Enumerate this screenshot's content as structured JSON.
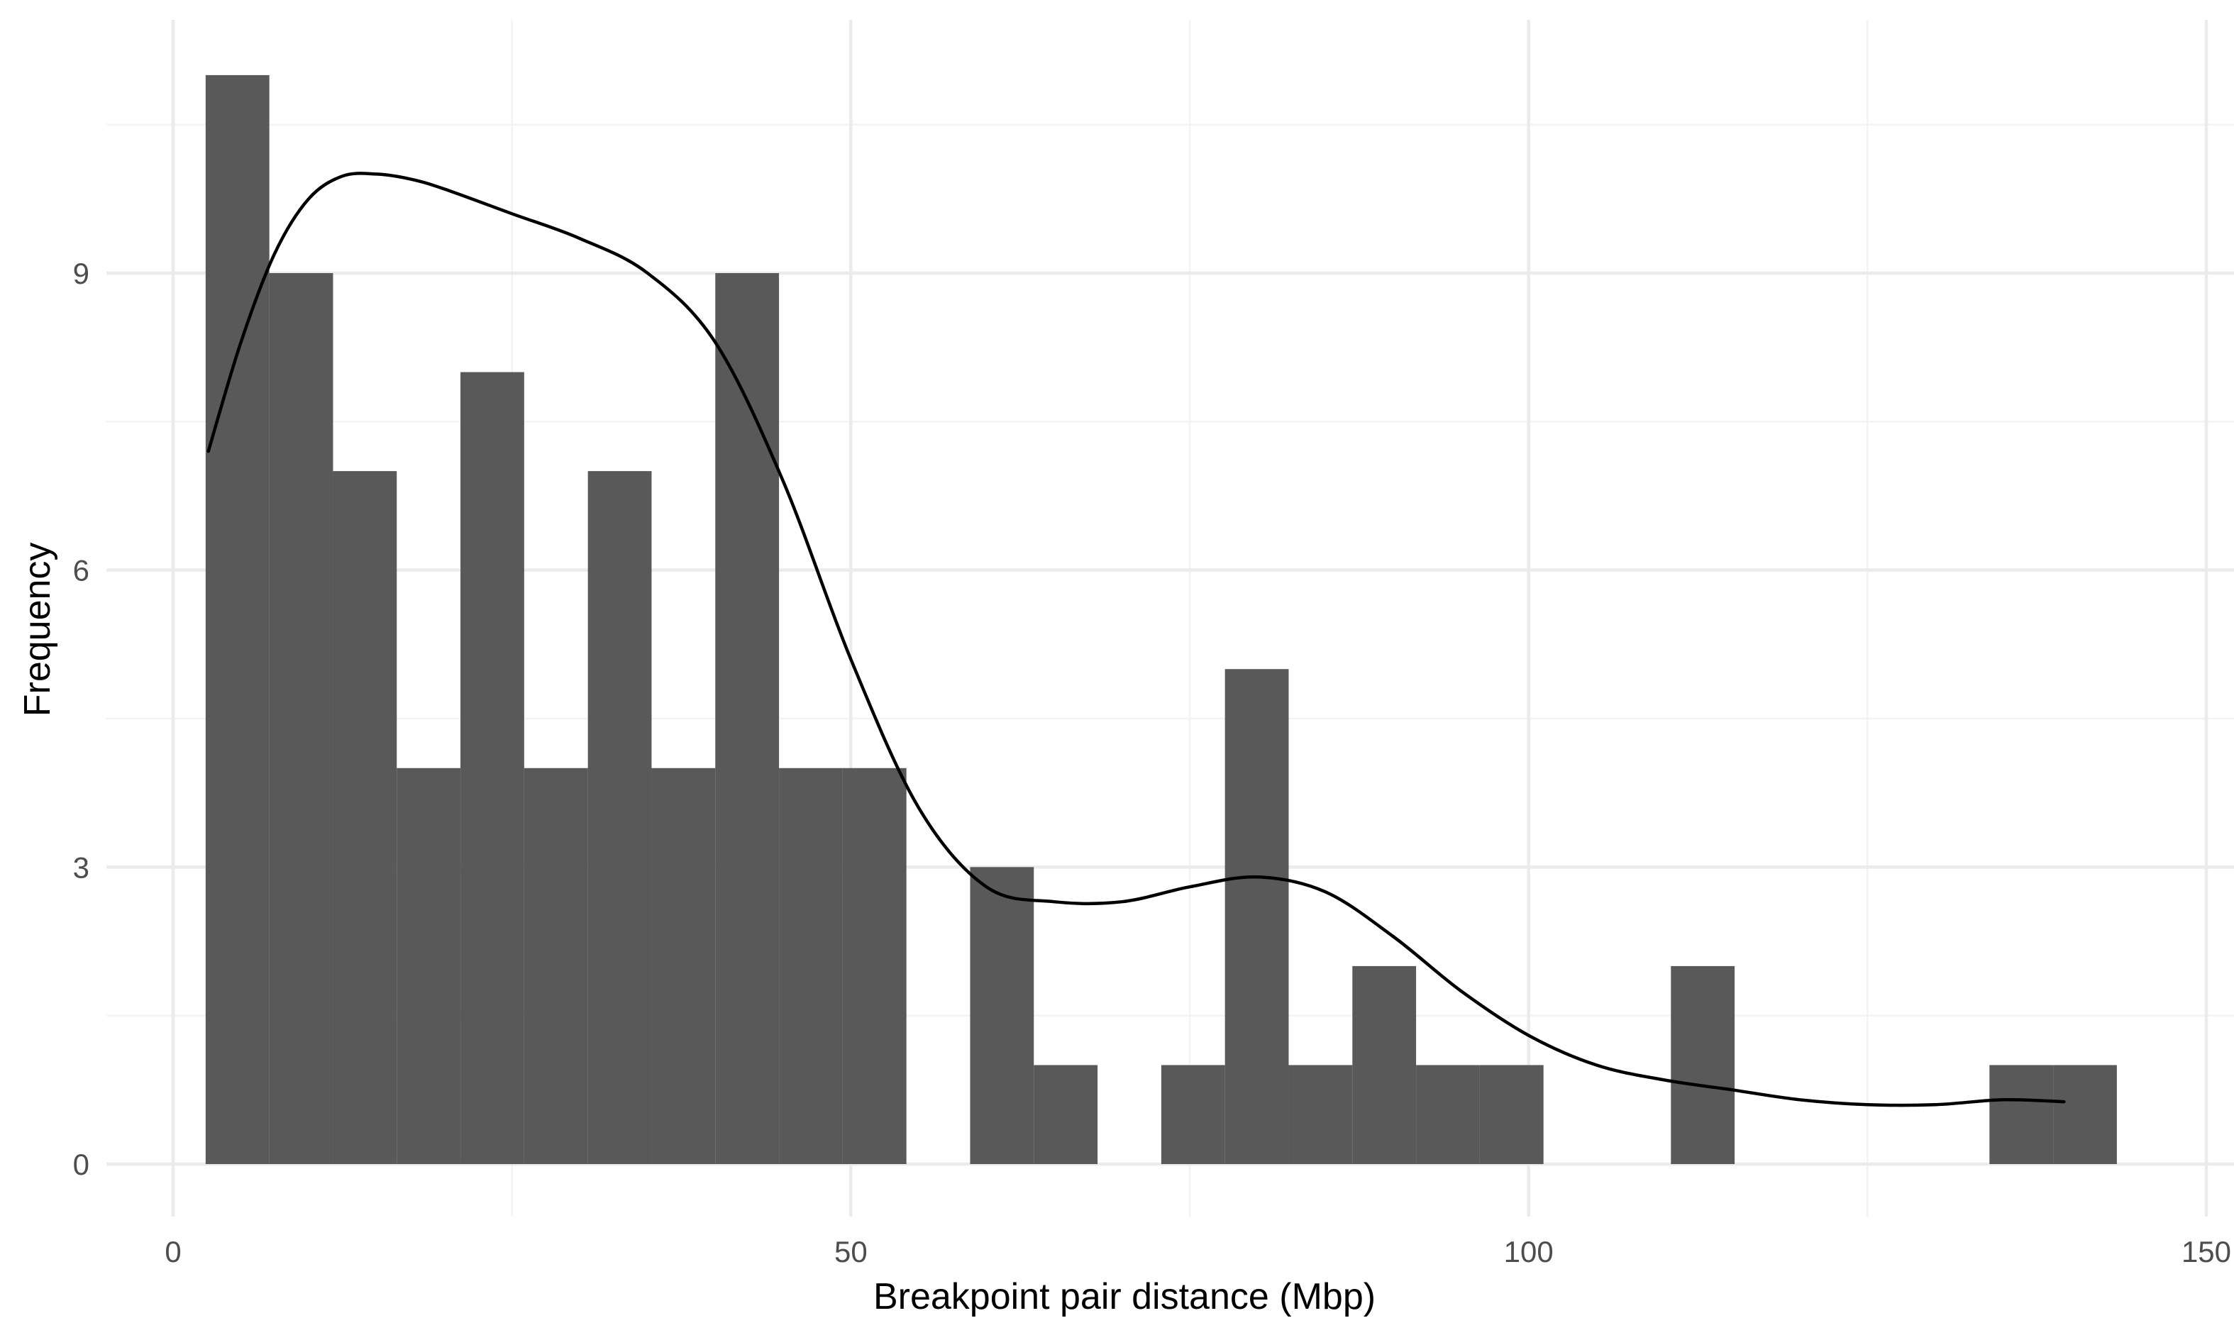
{
  "chart_data": {
    "type": "bar",
    "subtype": "histogram",
    "xlabel": "Breakpoint pair distance (Mbp)",
    "ylabel": "Frequency",
    "xlim": [
      0,
      150
    ],
    "ylim": [
      -1.05,
      11.5
    ],
    "x_ticks": [
      0,
      50,
      100,
      150
    ],
    "y_ticks": [
      0,
      3,
      6,
      9
    ],
    "grid": true,
    "bin_width": 4.7,
    "bins": [
      {
        "start": 2.4,
        "end": 7.1,
        "count": 11
      },
      {
        "start": 7.1,
        "end": 11.8,
        "count": 9
      },
      {
        "start": 11.8,
        "end": 16.5,
        "count": 7
      },
      {
        "start": 16.5,
        "end": 21.2,
        "count": 4
      },
      {
        "start": 21.2,
        "end": 25.9,
        "count": 8
      },
      {
        "start": 25.9,
        "end": 30.6,
        "count": 4
      },
      {
        "start": 30.6,
        "end": 35.3,
        "count": 7
      },
      {
        "start": 35.3,
        "end": 40.0,
        "count": 4
      },
      {
        "start": 40.0,
        "end": 44.7,
        "count": 9
      },
      {
        "start": 44.7,
        "end": 49.4,
        "count": 4
      },
      {
        "start": 49.4,
        "end": 54.1,
        "count": 4
      },
      {
        "start": 54.1,
        "end": 58.8,
        "count": 0
      },
      {
        "start": 58.8,
        "end": 63.5,
        "count": 3
      },
      {
        "start": 63.5,
        "end": 68.2,
        "count": 1
      },
      {
        "start": 68.2,
        "end": 72.9,
        "count": 0
      },
      {
        "start": 72.9,
        "end": 77.6,
        "count": 1
      },
      {
        "start": 77.6,
        "end": 82.3,
        "count": 5
      },
      {
        "start": 82.3,
        "end": 87.0,
        "count": 1
      },
      {
        "start": 87.0,
        "end": 91.7,
        "count": 2
      },
      {
        "start": 91.7,
        "end": 96.4,
        "count": 1
      },
      {
        "start": 96.4,
        "end": 101.1,
        "count": 1
      },
      {
        "start": 101.1,
        "end": 105.8,
        "count": 0
      },
      {
        "start": 105.8,
        "end": 110.5,
        "count": 0
      },
      {
        "start": 110.5,
        "end": 115.2,
        "count": 2
      },
      {
        "start": 115.2,
        "end": 119.9,
        "count": 0
      },
      {
        "start": 119.9,
        "end": 124.6,
        "count": 0
      },
      {
        "start": 124.6,
        "end": 129.3,
        "count": 0
      },
      {
        "start": 129.3,
        "end": 134.0,
        "count": 0
      },
      {
        "start": 134.0,
        "end": 138.7,
        "count": 1
      },
      {
        "start": 138.7,
        "end": 143.4,
        "count": 1
      }
    ],
    "density_curve": {
      "x": [
        2.6,
        5,
        7.5,
        10,
        12.5,
        15,
        17.5,
        20,
        25,
        30,
        35,
        40,
        45,
        50,
        55,
        60,
        65,
        70,
        75,
        80,
        85,
        90,
        95,
        100,
        105,
        110,
        115,
        120,
        125,
        130,
        135,
        139.5
      ],
      "y": [
        7.2,
        8.3,
        9.2,
        9.75,
        9.98,
        10.0,
        9.95,
        9.85,
        9.6,
        9.35,
        9.0,
        8.3,
        6.9,
        5.1,
        3.6,
        2.8,
        2.65,
        2.65,
        2.8,
        2.9,
        2.75,
        2.3,
        1.75,
        1.3,
        1.0,
        0.85,
        0.75,
        0.65,
        0.6,
        0.6,
        0.65,
        0.63
      ]
    },
    "colors": {
      "bar_fill": "#595959",
      "density_line": "#000000",
      "grid_major": "#ebebeb",
      "grid_minor": "#f3f3f3",
      "tick_text": "#4d4d4d"
    }
  }
}
